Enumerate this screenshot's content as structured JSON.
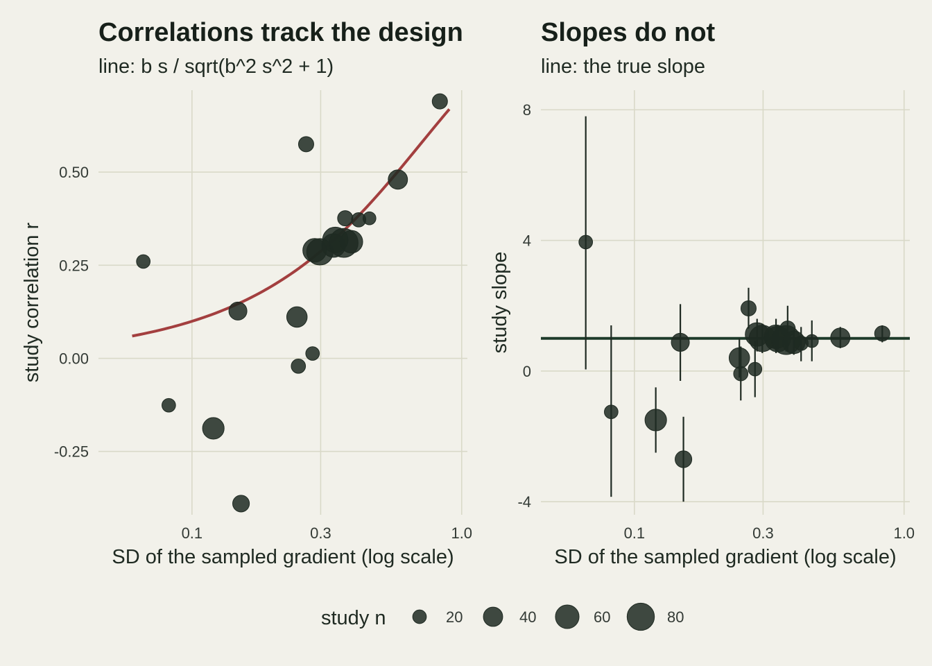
{
  "chart_data": [
    {
      "type": "scatter",
      "title": "Correlations track the design",
      "subtitle": "line: b s / sqrt(b^2 s^2 + 1)",
      "xlabel": "SD of the sampled gradient (log scale)",
      "ylabel": "study correlation r",
      "x_scale": "log",
      "xlim": [
        0.045,
        1.05
      ],
      "ylim": [
        -0.42,
        0.72
      ],
      "x_ticks": [
        {
          "v": 0.1,
          "label": "0.1"
        },
        {
          "v": 0.3,
          "label": "0.3"
        },
        {
          "v": 1.0,
          "label": "1.0"
        }
      ],
      "y_ticks": [
        {
          "v": -0.25,
          "label": "-0.25"
        },
        {
          "v": 0.0,
          "label": "0.00"
        },
        {
          "v": 0.25,
          "label": "0.25"
        },
        {
          "v": 0.5,
          "label": "0.50"
        }
      ],
      "grid": true,
      "curve": {
        "formula": "b*s/sqrt(b^2*s^2+1)",
        "b": 1.0,
        "x_from": 0.06,
        "x_to": 0.9,
        "color": "#a33f3f"
      },
      "points": [
        {
          "x": 0.066,
          "y": 0.26,
          "n": 20
        },
        {
          "x": 0.082,
          "y": -0.126,
          "n": 20
        },
        {
          "x": 0.12,
          "y": -0.188,
          "n": 50
        },
        {
          "x": 0.148,
          "y": 0.127,
          "n": 35
        },
        {
          "x": 0.152,
          "y": -0.39,
          "n": 30
        },
        {
          "x": 0.245,
          "y": 0.111,
          "n": 45
        },
        {
          "x": 0.248,
          "y": -0.021,
          "n": 22
        },
        {
          "x": 0.265,
          "y": 0.575,
          "n": 25
        },
        {
          "x": 0.28,
          "y": 0.013,
          "n": 20
        },
        {
          "x": 0.285,
          "y": 0.29,
          "n": 60
        },
        {
          "x": 0.298,
          "y": 0.286,
          "n": 75
        },
        {
          "x": 0.335,
          "y": 0.303,
          "n": 60
        },
        {
          "x": 0.34,
          "y": 0.318,
          "n": 70
        },
        {
          "x": 0.365,
          "y": 0.31,
          "n": 90
        },
        {
          "x": 0.37,
          "y": 0.376,
          "n": 25
        },
        {
          "x": 0.39,
          "y": 0.313,
          "n": 55
        },
        {
          "x": 0.415,
          "y": 0.372,
          "n": 22
        },
        {
          "x": 0.455,
          "y": 0.376,
          "n": 18
        },
        {
          "x": 0.58,
          "y": 0.48,
          "n": 40
        },
        {
          "x": 0.83,
          "y": 0.69,
          "n": 25
        }
      ],
      "point_color": "#1f2a22"
    },
    {
      "type": "scatter",
      "title": "Slopes do not",
      "subtitle": "line: the true slope",
      "xlabel": "SD of the sampled gradient (log scale)",
      "ylabel": "study slope",
      "x_scale": "log",
      "xlim": [
        0.045,
        1.05
      ],
      "ylim": [
        -4.4,
        8.6
      ],
      "x_ticks": [
        {
          "v": 0.1,
          "label": "0.1"
        },
        {
          "v": 0.3,
          "label": "0.3"
        },
        {
          "v": 1.0,
          "label": "1.0"
        }
      ],
      "y_ticks": [
        {
          "v": -4,
          "label": "-4"
        },
        {
          "v": 0,
          "label": "0"
        },
        {
          "v": 4,
          "label": "4"
        },
        {
          "v": 8,
          "label": "8"
        }
      ],
      "grid": true,
      "hline": {
        "y": 1.0,
        "color": "#1e3b2a"
      },
      "points": [
        {
          "x": 0.066,
          "y": 3.95,
          "lo": 0.05,
          "hi": 7.8,
          "n": 20
        },
        {
          "x": 0.082,
          "y": -1.25,
          "lo": -3.85,
          "hi": 1.4,
          "n": 20
        },
        {
          "x": 0.12,
          "y": -1.5,
          "lo": -2.5,
          "hi": -0.5,
          "n": 50
        },
        {
          "x": 0.148,
          "y": 0.88,
          "lo": -0.3,
          "hi": 2.05,
          "n": 35
        },
        {
          "x": 0.152,
          "y": -2.7,
          "lo": -4.0,
          "hi": -1.4,
          "n": 30
        },
        {
          "x": 0.245,
          "y": 0.4,
          "lo": -0.2,
          "hi": 1.0,
          "n": 45
        },
        {
          "x": 0.248,
          "y": -0.08,
          "lo": -0.9,
          "hi": 0.75,
          "n": 22
        },
        {
          "x": 0.265,
          "y": 1.92,
          "lo": 1.3,
          "hi": 2.55,
          "n": 25
        },
        {
          "x": 0.28,
          "y": 0.06,
          "lo": -0.8,
          "hi": 0.92,
          "n": 20
        },
        {
          "x": 0.285,
          "y": 1.12,
          "lo": 0.6,
          "hi": 1.6,
          "n": 60
        },
        {
          "x": 0.298,
          "y": 1.0,
          "lo": 0.55,
          "hi": 1.45,
          "n": 75
        },
        {
          "x": 0.335,
          "y": 1.05,
          "lo": 0.55,
          "hi": 1.6,
          "n": 60
        },
        {
          "x": 0.34,
          "y": 0.98,
          "lo": 0.6,
          "hi": 1.4,
          "n": 70
        },
        {
          "x": 0.365,
          "y": 0.95,
          "lo": 0.6,
          "hi": 1.3,
          "n": 90
        },
        {
          "x": 0.37,
          "y": 1.3,
          "lo": 0.6,
          "hi": 2.0,
          "n": 25
        },
        {
          "x": 0.39,
          "y": 0.88,
          "lo": 0.5,
          "hi": 1.25,
          "n": 55
        },
        {
          "x": 0.415,
          "y": 0.85,
          "lo": 0.3,
          "hi": 1.35,
          "n": 22
        },
        {
          "x": 0.455,
          "y": 0.92,
          "lo": 0.3,
          "hi": 1.55,
          "n": 18
        },
        {
          "x": 0.58,
          "y": 1.02,
          "lo": 0.7,
          "hi": 1.35,
          "n": 40
        },
        {
          "x": 0.83,
          "y": 1.15,
          "lo": 0.88,
          "hi": 1.4,
          "n": 25
        }
      ],
      "point_color": "#1f2a22"
    }
  ],
  "legend": {
    "title": "study n",
    "position": "bottom",
    "items": [
      {
        "n": 20,
        "label": "20"
      },
      {
        "n": 40,
        "label": "40"
      },
      {
        "n": 60,
        "label": "60"
      },
      {
        "n": 80,
        "label": "80"
      }
    ]
  },
  "colors": {
    "background": "#f2f1ea",
    "grid": "#d9d9c8",
    "point": "#1f2a22",
    "curve": "#a33f3f",
    "hline": "#1e3b2a"
  }
}
